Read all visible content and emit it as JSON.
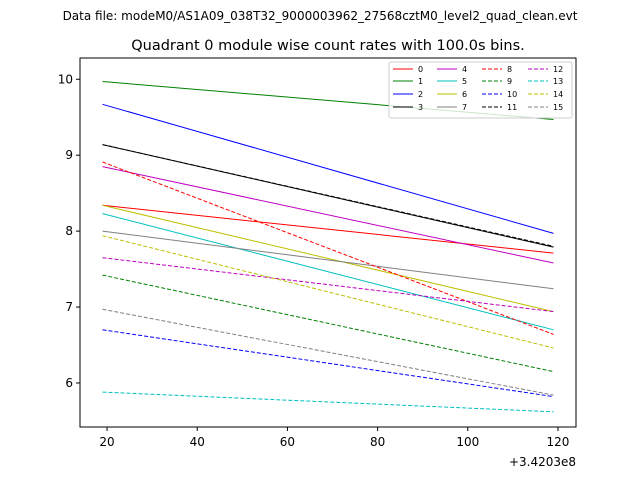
{
  "chart_data": {
    "type": "line",
    "suptitle": "Data file: modeM0/AS1A09_038T32_9000003962_27568cztM0_level2_quad_clean.evt",
    "title": "Quadrant 0 module wise count rates with 100.0s bins.",
    "xlabel": "",
    "ylabel": "",
    "x_offset_label": "+3.4203e8",
    "xlim": [
      14,
      124
    ],
    "ylim": [
      5.42,
      10.28
    ],
    "x_ticks": [
      20,
      40,
      60,
      80,
      100,
      120
    ],
    "y_ticks": [
      6,
      7,
      8,
      9,
      10
    ],
    "legend_location": "upper-right",
    "series": [
      {
        "name": "0",
        "color": "#ff0000",
        "dash": "solid",
        "x": [
          19,
          119
        ],
        "y": [
          8.34,
          7.71
        ]
      },
      {
        "name": "1",
        "color": "#008000",
        "dash": "solid",
        "x": [
          19,
          119
        ],
        "y": [
          9.97,
          9.47
        ]
      },
      {
        "name": "2",
        "color": "#0000ff",
        "dash": "solid",
        "x": [
          19,
          119
        ],
        "y": [
          9.67,
          7.97
        ]
      },
      {
        "name": "3",
        "color": "#000000",
        "dash": "solid",
        "x": [
          19,
          119
        ],
        "y": [
          9.14,
          7.79
        ]
      },
      {
        "name": "4",
        "color": "#bf00bf",
        "dash": "solid",
        "x": [
          19,
          119
        ],
        "y": [
          8.85,
          7.58
        ]
      },
      {
        "name": "5",
        "color": "#00bfbf",
        "dash": "solid",
        "x": [
          19,
          119
        ],
        "y": [
          8.23,
          6.7
        ]
      },
      {
        "name": "6",
        "color": "#bfbf00",
        "dash": "solid",
        "x": [
          19,
          119
        ],
        "y": [
          8.34,
          6.94
        ]
      },
      {
        "name": "7",
        "color": "#808080",
        "dash": "solid",
        "x": [
          19,
          119
        ],
        "y": [
          8.0,
          7.24
        ]
      },
      {
        "name": "8",
        "color": "#ff0000",
        "dash": "dashed",
        "x": [
          19,
          119
        ],
        "y": [
          8.91,
          6.64
        ]
      },
      {
        "name": "9",
        "color": "#008000",
        "dash": "dashed",
        "x": [
          19,
          119
        ],
        "y": [
          7.42,
          6.15
        ]
      },
      {
        "name": "10",
        "color": "#0000ff",
        "dash": "dashed",
        "x": [
          19,
          119
        ],
        "y": [
          6.7,
          5.82
        ]
      },
      {
        "name": "11",
        "color": "#000000",
        "dash": "dashed",
        "x": [
          19,
          119
        ],
        "y": [
          9.14,
          7.8
        ]
      },
      {
        "name": "12",
        "color": "#bf00bf",
        "dash": "dashed",
        "x": [
          19,
          119
        ],
        "y": [
          7.65,
          6.94
        ]
      },
      {
        "name": "13",
        "color": "#00bfbf",
        "dash": "dashed",
        "x": [
          19,
          119
        ],
        "y": [
          5.88,
          5.62
        ]
      },
      {
        "name": "14",
        "color": "#bfbf00",
        "dash": "dashed",
        "x": [
          19,
          119
        ],
        "y": [
          7.94,
          6.46
        ]
      },
      {
        "name": "15",
        "color": "#808080",
        "dash": "dashed",
        "x": [
          19,
          119
        ],
        "y": [
          6.97,
          5.84
        ]
      }
    ]
  }
}
